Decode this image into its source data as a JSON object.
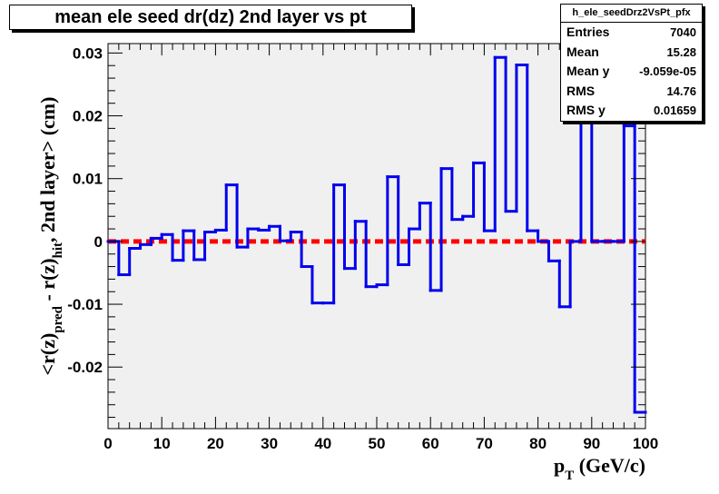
{
  "title": "mean ele seed dr(dz) 2nd layer vs pt",
  "stats": {
    "name": "h_ele_seedDrz2VsPt_pfx",
    "rows": [
      {
        "label": "Entries",
        "value": "7040"
      },
      {
        "label": "Mean",
        "value": "15.28"
      },
      {
        "label": "Mean y",
        "value": "-9.059e-05"
      },
      {
        "label": "RMS",
        "value": "14.76"
      },
      {
        "label": "RMS y",
        "value": "0.01659"
      }
    ]
  },
  "chart_data": {
    "type": "line",
    "title": "mean ele seed dr(dz) 2nd layer vs pt",
    "xlabel": "p_T (GeV/c)",
    "ylabel": "<r(z)_pred - r(z)_hit, 2nd layer> (cm)",
    "xlim": [
      0,
      100
    ],
    "ylim": [
      -0.0298,
      0.0315
    ],
    "xticks": [
      "0",
      "10",
      "20",
      "30",
      "40",
      "50",
      "60",
      "70",
      "80",
      "90",
      "100"
    ],
    "yticks": [
      {
        "value": -0.02,
        "label": "-0.02"
      },
      {
        "value": -0.01,
        "label": "-0.01"
      },
      {
        "value": 0,
        "label": "0"
      },
      {
        "value": 0.01,
        "label": "0.01"
      },
      {
        "value": 0.02,
        "label": "0.02"
      },
      {
        "value": 0.03,
        "label": "0.03"
      }
    ],
    "grid": false,
    "bin_width": 2,
    "series": [
      {
        "color": "#0000ee",
        "style": "histogram-step",
        "values": [
          0,
          -0.0053,
          -0.0011,
          -0.0005,
          0.0005,
          0.0011,
          -0.003,
          0.0017,
          -0.0029,
          0.0015,
          0.0018,
          0.009,
          -0.0009,
          0.002,
          0.0018,
          0.0024,
          0.0001,
          0.0015,
          -0.004,
          -0.0098,
          -0.0098,
          0.009,
          -0.0043,
          0.0032,
          -0.0072,
          -0.0069,
          0.0103,
          -0.0037,
          0.002,
          0.0061,
          -0.0078,
          0.0116,
          0.0035,
          0.004,
          0.0125,
          0.0017,
          0.0293,
          0.0048,
          0.0281,
          0.0017,
          0.0,
          -0.0031,
          -0.0104,
          0.0,
          0.0295,
          0.0,
          0.0,
          0.0,
          0.0184,
          -0.0272
        ]
      },
      {
        "color": "#ff0000",
        "style": "dashed-reference",
        "values": [
          0,
          0
        ]
      }
    ]
  }
}
